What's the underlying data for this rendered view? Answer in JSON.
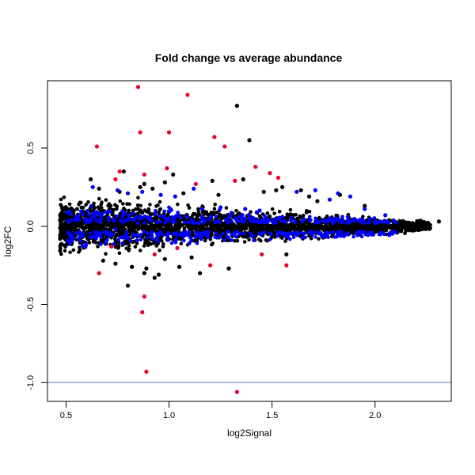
{
  "chart_data": {
    "type": "scatter",
    "title": "Fold change vs average abundance",
    "xlabel": "log2Signal",
    "ylabel": "log2FC",
    "xlim": [
      0.41,
      2.37
    ],
    "ylim": [
      -1.12,
      0.93
    ],
    "x_ticks": [
      0.5,
      1.0,
      1.5,
      2.0
    ],
    "x_tick_labels": [
      "0.5",
      "1.0",
      "1.5",
      "2.0"
    ],
    "y_ticks": [
      -1.0,
      -0.5,
      0.0,
      0.5
    ],
    "y_tick_labels": [
      "-1.0",
      "-0.5",
      "0.0",
      "0.5"
    ],
    "grid": false,
    "reference_line": {
      "y": -1.0,
      "color": "#6a7bd8"
    },
    "colors": {
      "background": "#000000",
      "highlight": "#0000ff",
      "significant": "#e8002a"
    },
    "series": [
      {
        "role": "background",
        "color": "#000000",
        "x": [
          1.33,
          1.39,
          0.93,
          1.29,
          1.15,
          2.31,
          2.22,
          1.83,
          1.95,
          0.62,
          0.78,
          0.88,
          0.86,
          1.02,
          1.07,
          0.98,
          1.21,
          1.36,
          0.82,
          0.74,
          0.8,
          0.95,
          0.89,
          0.68,
          1.55,
          1.64,
          1.68,
          1.72,
          1.05,
          1.11,
          0.76,
          0.92,
          1.46,
          1.52,
          0.66,
          0.98,
          1.24,
          1.57,
          0.88
        ],
        "y": [
          0.77,
          0.55,
          -0.33,
          -0.27,
          -0.3,
          0.03,
          -0.01,
          0.2,
          0.13,
          0.3,
          0.35,
          0.27,
          0.25,
          0.33,
          0.21,
          0.28,
          0.29,
          0.3,
          -0.26,
          -0.24,
          -0.38,
          -0.31,
          -0.27,
          -0.22,
          0.25,
          0.23,
          0.19,
          0.16,
          -0.26,
          -0.2,
          0.22,
          0.24,
          0.22,
          0.23,
          0.24,
          -0.21,
          0.2,
          -0.18,
          -0.3
        ]
      },
      {
        "role": "highlight",
        "color": "#0000ff",
        "x": [
          0.63,
          0.75,
          0.8,
          0.87,
          0.96,
          1.03,
          1.12,
          1.25,
          1.37,
          1.44,
          1.62,
          1.71,
          1.82,
          1.88,
          2.05,
          1.95,
          0.7,
          0.74,
          1.16,
          1.47,
          1.78
        ],
        "y": [
          0.25,
          0.23,
          0.21,
          0.22,
          0.2,
          0.19,
          0.24,
          0.12,
          0.11,
          0.1,
          0.22,
          0.23,
          0.21,
          0.19,
          0.07,
          0.11,
          -0.05,
          -0.02,
          0.11,
          0.05,
          0.17
        ]
      },
      {
        "role": "significant",
        "color": "#e8002a",
        "x": [
          0.85,
          1.09,
          0.86,
          1.0,
          0.65,
          1.22,
          1.27,
          0.76,
          0.99,
          0.74,
          1.13,
          0.88,
          1.42,
          1.32,
          1.04,
          0.66,
          0.88,
          0.87,
          0.89,
          1.33,
          1.57,
          1.45,
          0.93,
          1.2,
          0.72,
          1.49,
          1.53
        ],
        "y": [
          0.89,
          0.84,
          0.6,
          0.6,
          0.51,
          0.57,
          0.51,
          0.35,
          0.37,
          0.3,
          0.27,
          0.33,
          0.38,
          0.29,
          -0.14,
          -0.3,
          -0.45,
          -0.55,
          -0.93,
          -1.06,
          -0.25,
          -0.18,
          -0.18,
          -0.25,
          -0.13,
          0.34,
          0.31
        ]
      }
    ]
  }
}
